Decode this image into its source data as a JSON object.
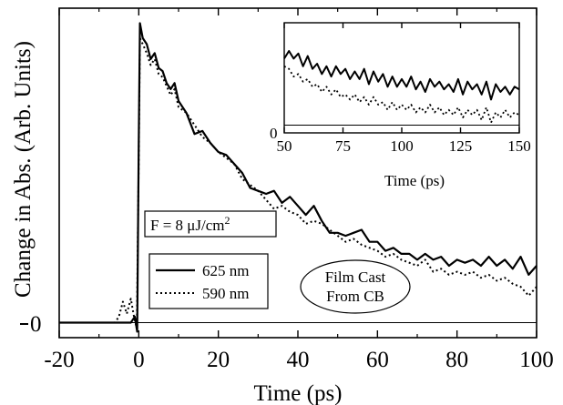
{
  "chart_data": [
    {
      "id": "main",
      "type": "line",
      "title": "",
      "xlabel": "Time (ps)",
      "ylabel": "Change in Abs. (Arb. Units)",
      "xlim": [
        -20,
        100
      ],
      "ylim": [
        -0.05,
        1.05
      ],
      "xticks": [
        -20,
        0,
        20,
        40,
        60,
        80,
        100
      ],
      "xtick_labels": [
        "-20",
        "0",
        "20",
        "40",
        "60",
        "80",
        "100"
      ],
      "yticks": [
        0
      ],
      "ytick_labels": [
        "0"
      ],
      "grid": false,
      "zero_line": true,
      "legend_position": "lower-left",
      "series": [
        {
          "name": "625 nm",
          "line_style": "solid",
          "x": [
            -20,
            -2,
            -1,
            -0.4,
            0,
            0.3,
            1,
            2,
            3,
            4,
            5,
            6,
            7,
            8,
            9,
            10,
            12,
            14,
            16,
            18,
            20,
            22,
            24,
            26,
            28,
            30,
            32,
            34,
            36,
            38,
            40,
            42,
            44,
            46,
            48,
            50,
            52,
            54,
            56,
            58,
            60,
            62,
            64,
            66,
            68,
            70,
            72,
            74,
            76,
            78,
            80,
            82,
            84,
            86,
            88,
            90,
            92,
            94,
            96,
            98,
            100
          ],
          "y": [
            0,
            0,
            0.02,
            -0.03,
            0.6,
            1.0,
            0.95,
            0.93,
            0.88,
            0.9,
            0.85,
            0.84,
            0.8,
            0.78,
            0.8,
            0.74,
            0.7,
            0.63,
            0.64,
            0.6,
            0.57,
            0.56,
            0.53,
            0.5,
            0.45,
            0.44,
            0.43,
            0.44,
            0.4,
            0.42,
            0.39,
            0.36,
            0.39,
            0.34,
            0.3,
            0.3,
            0.29,
            0.3,
            0.31,
            0.27,
            0.27,
            0.24,
            0.25,
            0.23,
            0.23,
            0.21,
            0.23,
            0.21,
            0.22,
            0.19,
            0.21,
            0.2,
            0.21,
            0.19,
            0.22,
            0.19,
            0.21,
            0.18,
            0.22,
            0.16,
            0.19
          ]
        },
        {
          "name": "590 nm",
          "line_style": "dotted",
          "x": [
            -20,
            -6,
            -5,
            -4,
            -3,
            -2,
            -1.2,
            -0.5,
            0,
            0.3,
            1,
            2,
            3,
            4,
            5,
            6,
            7,
            8,
            9,
            10,
            12,
            14,
            16,
            18,
            20,
            22,
            24,
            26,
            28,
            30,
            32,
            34,
            36,
            38,
            40,
            42,
            44,
            46,
            48,
            50,
            52,
            54,
            56,
            58,
            60,
            62,
            64,
            66,
            68,
            70,
            72,
            74,
            76,
            78,
            80,
            82,
            84,
            86,
            88,
            90,
            92,
            94,
            96,
            98,
            100
          ],
          "y": [
            0,
            0,
            0.02,
            0.07,
            0.03,
            0.08,
            0.02,
            -0.02,
            0.55,
            0.95,
            0.93,
            0.9,
            0.86,
            0.88,
            0.83,
            0.82,
            0.79,
            0.76,
            0.78,
            0.72,
            0.7,
            0.66,
            0.62,
            0.6,
            0.57,
            0.55,
            0.53,
            0.48,
            0.46,
            0.44,
            0.41,
            0.38,
            0.39,
            0.37,
            0.36,
            0.33,
            0.34,
            0.33,
            0.31,
            0.29,
            0.27,
            0.28,
            0.26,
            0.25,
            0.24,
            0.22,
            0.23,
            0.21,
            0.2,
            0.19,
            0.21,
            0.17,
            0.18,
            0.16,
            0.17,
            0.16,
            0.17,
            0.15,
            0.16,
            0.14,
            0.15,
            0.13,
            0.12,
            0.09,
            0.12
          ]
        }
      ]
    },
    {
      "id": "inset",
      "type": "line",
      "title": "",
      "xlabel": "Time (ps)",
      "ylabel": "",
      "xlim": [
        50,
        150
      ],
      "ylim": [
        -0.03,
        0.4
      ],
      "xticks": [
        50,
        75,
        100,
        125,
        150
      ],
      "xtick_labels": [
        "50",
        "75",
        "100",
        "125",
        "150"
      ],
      "yticks": [
        0
      ],
      "ytick_labels": [
        "0"
      ],
      "grid": false,
      "zero_line": true,
      "series": [
        {
          "name": "625 nm",
          "line_style": "solid",
          "x": [
            50,
            52,
            54,
            56,
            58,
            60,
            62,
            64,
            66,
            68,
            70,
            72,
            74,
            76,
            78,
            80,
            82,
            84,
            86,
            88,
            90,
            92,
            94,
            96,
            98,
            100,
            102,
            104,
            106,
            108,
            110,
            112,
            114,
            116,
            118,
            120,
            122,
            124,
            126,
            128,
            130,
            132,
            134,
            136,
            138,
            140,
            142,
            144,
            146,
            148,
            150
          ],
          "y": [
            0.26,
            0.29,
            0.26,
            0.28,
            0.23,
            0.27,
            0.22,
            0.24,
            0.2,
            0.23,
            0.19,
            0.23,
            0.2,
            0.22,
            0.18,
            0.21,
            0.18,
            0.22,
            0.16,
            0.21,
            0.17,
            0.2,
            0.15,
            0.19,
            0.15,
            0.18,
            0.15,
            0.19,
            0.14,
            0.17,
            0.13,
            0.18,
            0.15,
            0.17,
            0.14,
            0.16,
            0.13,
            0.18,
            0.12,
            0.17,
            0.14,
            0.16,
            0.12,
            0.17,
            0.1,
            0.16,
            0.13,
            0.15,
            0.12,
            0.15,
            0.14
          ]
        },
        {
          "name": "590 nm",
          "line_style": "dotted",
          "x": [
            50,
            52,
            54,
            56,
            58,
            60,
            62,
            64,
            66,
            68,
            70,
            72,
            74,
            76,
            78,
            80,
            82,
            84,
            86,
            88,
            90,
            92,
            94,
            96,
            98,
            100,
            102,
            104,
            106,
            108,
            110,
            112,
            114,
            116,
            118,
            120,
            122,
            124,
            126,
            128,
            130,
            132,
            134,
            136,
            138,
            140,
            142,
            144,
            146,
            148,
            150
          ],
          "y": [
            0.23,
            0.22,
            0.19,
            0.2,
            0.17,
            0.18,
            0.15,
            0.16,
            0.13,
            0.15,
            0.12,
            0.14,
            0.11,
            0.12,
            0.1,
            0.12,
            0.09,
            0.11,
            0.08,
            0.11,
            0.08,
            0.09,
            0.06,
            0.09,
            0.06,
            0.08,
            0.06,
            0.08,
            0.05,
            0.07,
            0.05,
            0.08,
            0.05,
            0.07,
            0.04,
            0.06,
            0.04,
            0.07,
            0.03,
            0.06,
            0.04,
            0.06,
            0.02,
            0.07,
            0.01,
            0.05,
            0.03,
            0.06,
            0.03,
            0.05,
            0.04
          ]
        }
      ]
    }
  ],
  "annotations": {
    "fluence_label": "F = 8 μJ/cm",
    "fluence_superscript": "2",
    "sample_label_line1": "Film Cast",
    "sample_label_line2": "From CB"
  },
  "legend": {
    "items": [
      "625 nm",
      "590 nm"
    ]
  }
}
